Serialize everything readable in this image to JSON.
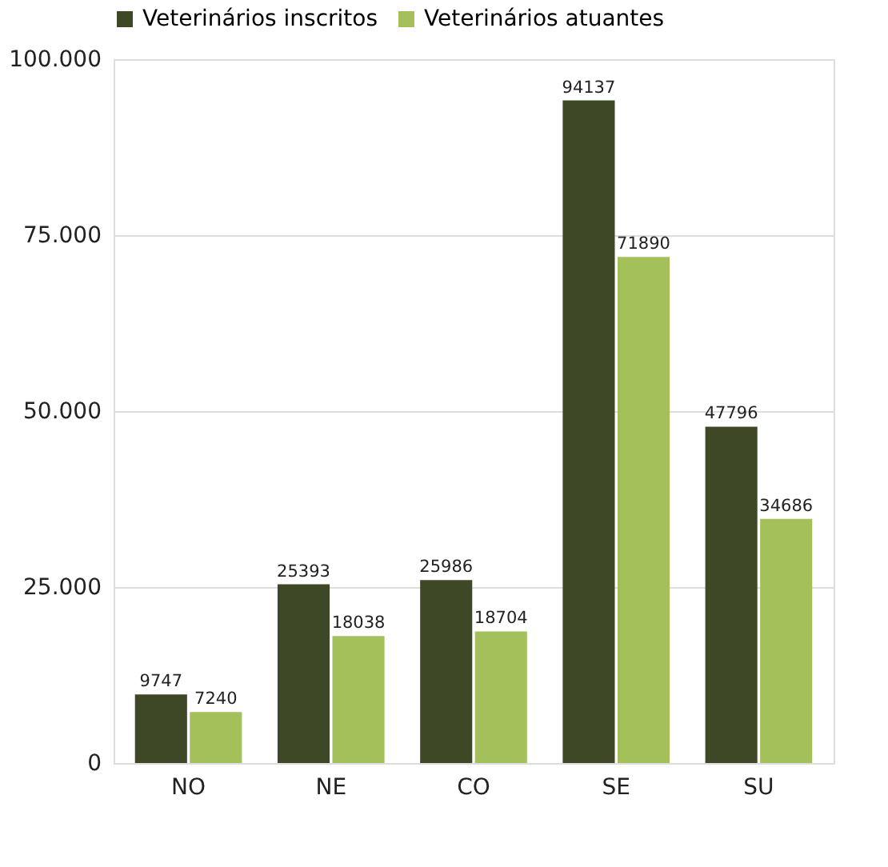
{
  "chart_data": {
    "type": "bar",
    "categories": [
      "NO",
      "NE",
      "CO",
      "SE",
      "SU"
    ],
    "series": [
      {
        "name": "Veterinários inscritos",
        "color": "#3e4826",
        "values": [
          9747,
          25393,
          25986,
          94137,
          47796
        ]
      },
      {
        "name": "Veterinários atuantes",
        "color": "#a3c05b",
        "values": [
          7240,
          18038,
          18704,
          71890,
          34686
        ]
      }
    ],
    "ylim": [
      0,
      100000
    ],
    "yticks": [
      0,
      {
        "value": 25000,
        "label": "25.000"
      },
      {
        "value": 50000,
        "label": "50.000"
      },
      {
        "value": 75000,
        "label": "75.000"
      },
      {
        "value": 100000,
        "label": "100.000"
      }
    ],
    "grid": "y",
    "legend": "top",
    "data_labels": true
  }
}
